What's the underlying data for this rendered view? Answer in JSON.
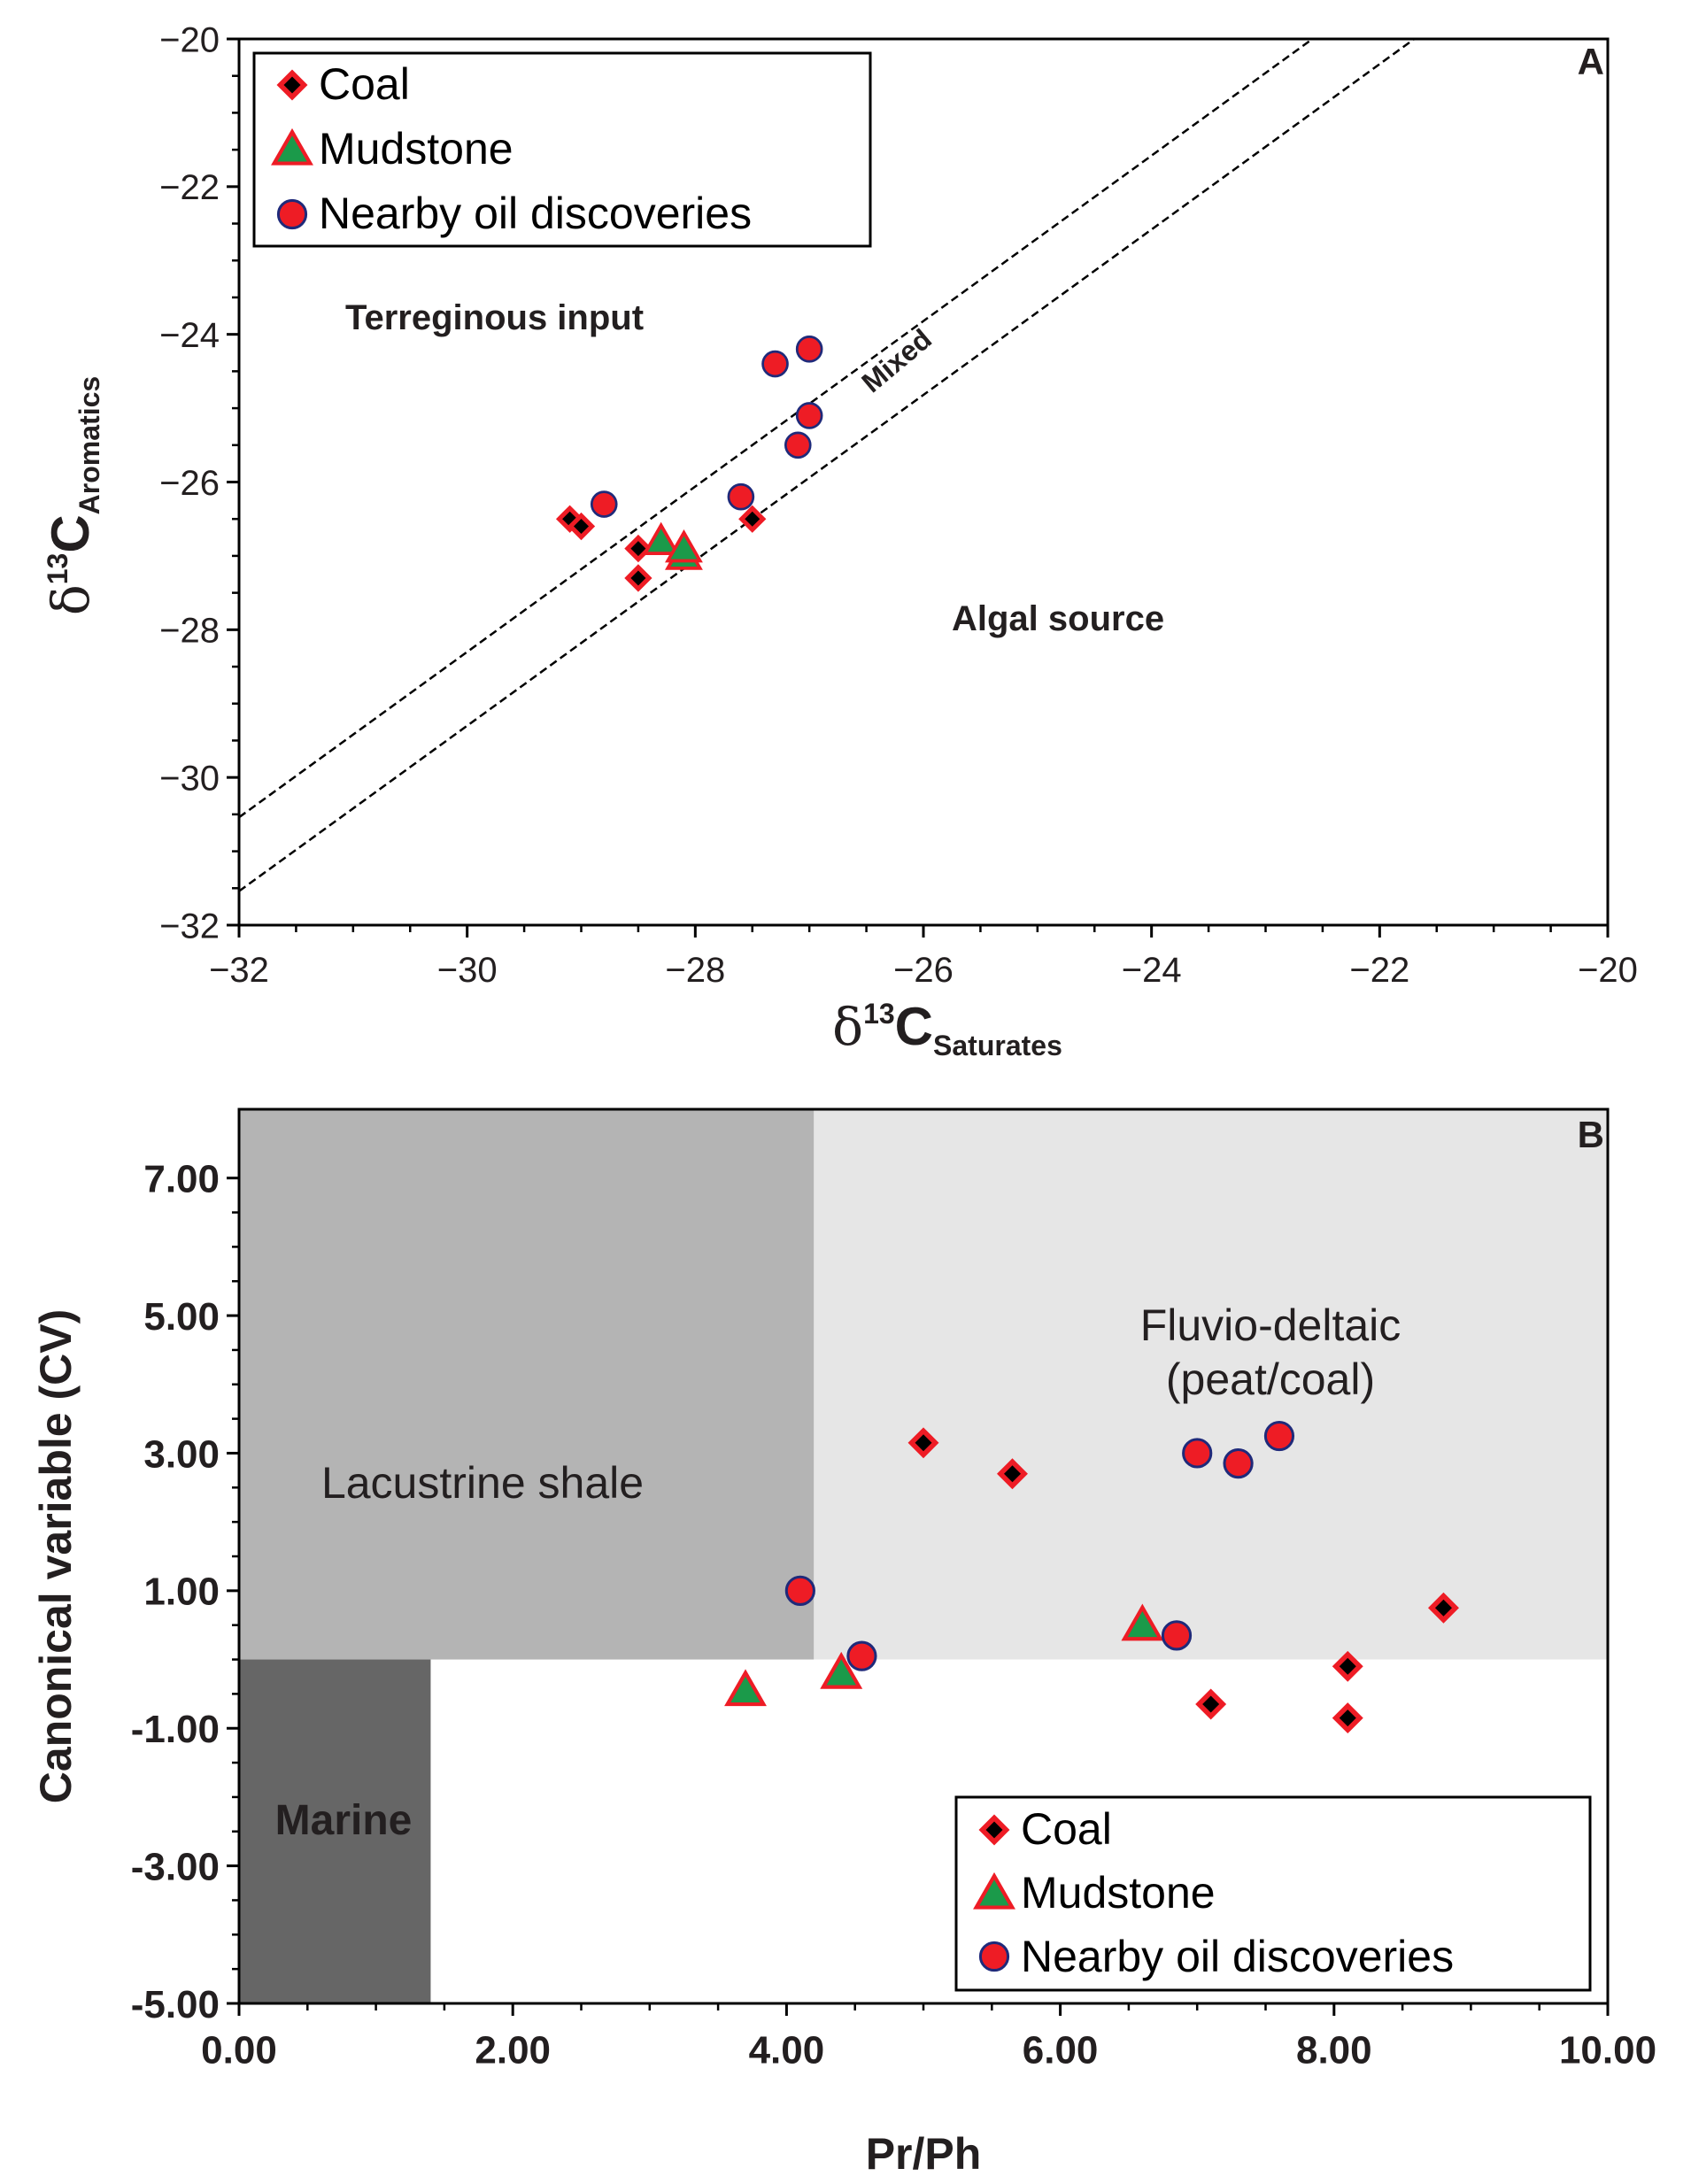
{
  "chart_data": [
    {
      "panel": "A",
      "type": "scatter",
      "title": "",
      "xlabel": "δ13C Saturates",
      "xlabel_parts": {
        "delta": "δ",
        "sup": "13",
        "main": "C",
        "sub": "Saturates"
      },
      "ylabel": "δ13C Aromatics",
      "ylabel_parts": {
        "delta": "δ",
        "sup": "13",
        "main": "C",
        "sub": "Aromatics"
      },
      "xlim": [
        -32,
        -20
      ],
      "ylim": [
        -32,
        -20
      ],
      "xticks": [
        -32,
        -30,
        -28,
        -26,
        -24,
        -22,
        -20
      ],
      "yticks": [
        -32,
        -30,
        -28,
        -26,
        -24,
        -22,
        -20
      ],
      "xtick_labels": [
        "−32",
        "−30",
        "−28",
        "−26",
        "−24",
        "−22",
        "−20"
      ],
      "ytick_labels": [
        "−32",
        "−30",
        "−28",
        "−26",
        "−24",
        "−22",
        "−20"
      ],
      "legend": [
        {
          "label": "Coal",
          "marker": "diamond"
        },
        {
          "label": "Mudstone",
          "marker": "triangle"
        },
        {
          "label": "Nearby oil discoveries",
          "marker": "circle"
        }
      ],
      "legend_position": "top-left",
      "reference_lines": [
        {
          "slope": 1.12,
          "intercept": 5.3
        },
        {
          "slope": 1.12,
          "intercept": 4.3
        }
      ],
      "annotations": {
        "panel_label": "A",
        "terrestrial": "Terreginous input",
        "mixed": "Mixed",
        "algal": "Algal source"
      },
      "series": [
        {
          "name": "Coal",
          "marker": "diamond",
          "points": [
            [
              -29.1,
              -26.5
            ],
            [
              -29.0,
              -26.6
            ],
            [
              -28.5,
              -26.9
            ],
            [
              -28.5,
              -27.3
            ],
            [
              -27.5,
              -26.5
            ]
          ]
        },
        {
          "name": "Mudstone",
          "marker": "triangle",
          "points": [
            [
              -28.3,
              -26.8
            ],
            [
              -28.1,
              -27.0
            ],
            [
              -28.1,
              -26.9
            ]
          ]
        },
        {
          "name": "Nearby oil discoveries",
          "marker": "circle",
          "points": [
            [
              -28.8,
              -26.3
            ],
            [
              -27.6,
              -26.2
            ],
            [
              -27.3,
              -24.4
            ],
            [
              -27.0,
              -24.2
            ],
            [
              -27.0,
              -25.1
            ],
            [
              -27.1,
              -25.5
            ]
          ]
        }
      ]
    },
    {
      "panel": "B",
      "type": "scatter",
      "title": "",
      "xlabel": "Pr/Ph",
      "ylabel": "Canonical variable (CV)",
      "xlim": [
        0,
        10
      ],
      "ylim": [
        -5,
        8
      ],
      "xticks": [
        0,
        2,
        4,
        6,
        8,
        10
      ],
      "yticks": [
        -5,
        -3,
        -1,
        1,
        3,
        5,
        7
      ],
      "xtick_labels": [
        "0.00",
        "2.00",
        "4.00",
        "6.00",
        "8.00",
        "10.00"
      ],
      "ytick_labels": [
        "-5.00",
        "-3.00",
        "-1.00",
        "1.00",
        "3.00",
        "5.00",
        "7.00"
      ],
      "legend": [
        {
          "label": "Coal",
          "marker": "diamond"
        },
        {
          "label": "Mudstone",
          "marker": "triangle"
        },
        {
          "label": "Nearby oil discoveries",
          "marker": "circle"
        }
      ],
      "legend_position": "bottom-right",
      "regions": [
        {
          "name": "Lacustrine shale",
          "label": "Lacustrine shale",
          "x": [
            0,
            4.2
          ],
          "y": [
            0,
            8
          ],
          "color": "#b4b4b4"
        },
        {
          "name": "Fluvio-deltaic",
          "label_lines": [
            "Fluvio-deltaic",
            "(peat/coal)"
          ],
          "x": [
            4.2,
            10
          ],
          "y": [
            0,
            8
          ],
          "color": "#e6e6e6"
        },
        {
          "name": "Marine",
          "label": "Marine",
          "x": [
            0,
            1.4
          ],
          "y": [
            -5,
            0
          ],
          "color": "#666666"
        }
      ],
      "annotations": {
        "panel_label": "B"
      },
      "series": [
        {
          "name": "Coal",
          "marker": "diamond",
          "points": [
            [
              5.0,
              3.15
            ],
            [
              5.65,
              2.7
            ],
            [
              7.1,
              -0.65
            ],
            [
              8.1,
              -0.1
            ],
            [
              8.1,
              -0.85
            ],
            [
              8.8,
              0.75
            ]
          ]
        },
        {
          "name": "Mudstone",
          "marker": "triangle",
          "points": [
            [
              3.7,
              -0.45
            ],
            [
              4.4,
              -0.2
            ],
            [
              6.6,
              0.5
            ]
          ]
        },
        {
          "name": "Nearby oil discoveries",
          "marker": "circle",
          "points": [
            [
              4.1,
              1.0
            ],
            [
              4.55,
              0.05
            ],
            [
              6.85,
              0.35
            ],
            [
              7.0,
              3.0
            ],
            [
              7.3,
              2.85
            ],
            [
              7.6,
              3.25
            ]
          ]
        }
      ]
    }
  ],
  "colors": {
    "marker_red": "#ee1c25",
    "marker_green": "#1b9a4a",
    "marker_circle_edge": "#1f2a7a",
    "marker_black": "#000000",
    "dark_text": "#231f20"
  }
}
